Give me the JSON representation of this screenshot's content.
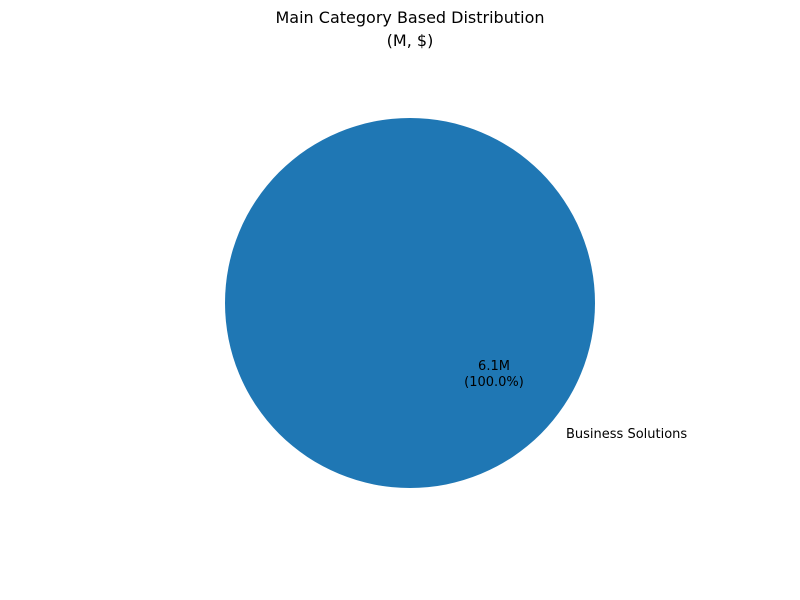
{
  "chart_data": {
    "type": "pie",
    "title_line1": "Main Category Based Distribution",
    "title_line2": "(M, $)",
    "slices": [
      {
        "label": "Business Solutions",
        "value": 6.1,
        "value_label": "6.1M",
        "percent_label": "(100.0%)",
        "color": "#1f77b4"
      }
    ]
  }
}
